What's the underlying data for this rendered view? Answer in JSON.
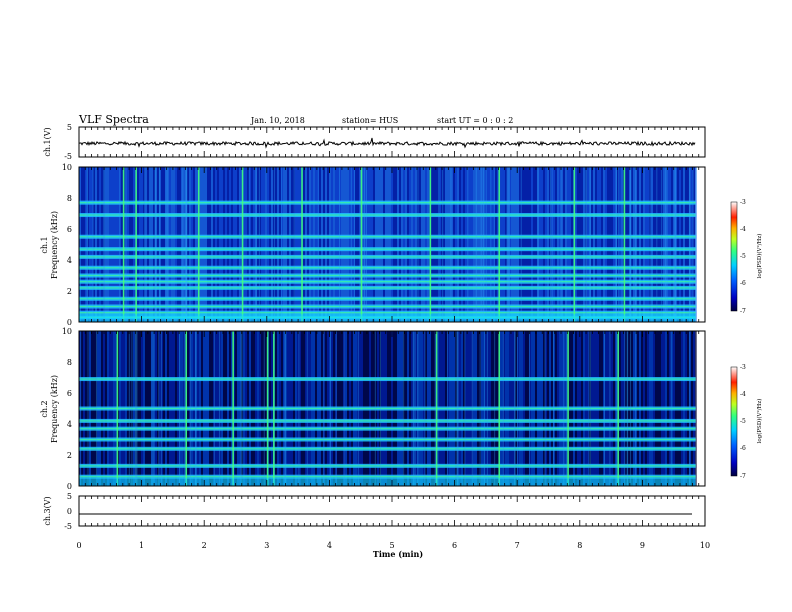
{
  "header": {
    "title": "VLF Spectra",
    "date": "Jan. 10, 2018",
    "station": "station= HUS",
    "start": "start  UT =  0 : 0 : 2"
  },
  "colors": {
    "trace": "#000000",
    "colormap": [
      "#000040",
      "#0000c0",
      "#0050ff",
      "#00c8ff",
      "#30ff90",
      "#b0ff20",
      "#ffb000",
      "#ff2000",
      "#ffffff"
    ]
  },
  "chart_data": [
    {
      "type": "line",
      "name": "ch1-waveform",
      "ylabel": "ch.1(V)",
      "ylim": [
        -5,
        5
      ],
      "yticks": [
        "5",
        "-5"
      ],
      "xlim": [
        0,
        10
      ],
      "description_level": -0.5
    },
    {
      "type": "heatmap",
      "name": "ch1-spectrogram",
      "ylabel": "ch.1\nFrequency (kHz)",
      "ylabel_lines": [
        "ch.1",
        "Frequency (kHz)"
      ],
      "ylim": [
        0,
        10
      ],
      "yticks": [
        "0",
        "2",
        "4",
        "6",
        "8",
        "10"
      ],
      "xlim": [
        0,
        10
      ],
      "data_end_min": 9.85,
      "colorbar": {
        "label": "log(PSD)(V²/Hz)",
        "range": [
          -7,
          -3
        ],
        "ticks": [
          "-3",
          "-4",
          "-5",
          "-6",
          "-7"
        ]
      },
      "bright_bands_khz": [
        0.3,
        0.6,
        1.0,
        1.5,
        2.2,
        2.6,
        3.0,
        3.5,
        4.2,
        4.7,
        5.5,
        6.9,
        7.7
      ],
      "bright_spikes_min": [
        0.7,
        0.9,
        1.9,
        2.6,
        3.55,
        4.5,
        5.6,
        6.7,
        7.9,
        8.7
      ]
    },
    {
      "type": "heatmap",
      "name": "ch2-spectrogram",
      "ylabel": "ch.2\nFrequency (kHz)",
      "ylabel_lines": [
        "ch.2",
        "Frequency (kHz)"
      ],
      "ylim": [
        0,
        10
      ],
      "yticks": [
        "0",
        "2",
        "4",
        "6",
        "8",
        "10"
      ],
      "xlim": [
        0,
        10
      ],
      "data_end_min": 9.85,
      "colorbar": {
        "label": "log(PSD)(V²/Hz)",
        "range": [
          -7,
          -3
        ],
        "ticks": [
          "-3",
          "-4",
          "-5",
          "-6",
          "-7"
        ]
      },
      "bright_bands_khz": [
        0.6,
        1.3,
        2.4,
        3.0,
        3.7,
        4.2,
        5.0,
        6.9
      ],
      "bright_spikes_min": [
        0.6,
        1.7,
        2.45,
        3.0,
        3.1,
        5.7,
        6.7,
        7.8,
        8.6
      ]
    },
    {
      "type": "line",
      "name": "ch3-waveform",
      "ylabel": "ch.3(V)",
      "ylim": [
        -5,
        5
      ],
      "yticks": [
        "5",
        "0",
        "-5"
      ],
      "xlim": [
        0,
        10
      ],
      "constant_value": -1.0
    }
  ],
  "xaxis": {
    "label": "Time (min)",
    "ticks": [
      "0",
      "1",
      "2",
      "3",
      "4",
      "5",
      "6",
      "7",
      "8",
      "9",
      "10"
    ]
  }
}
